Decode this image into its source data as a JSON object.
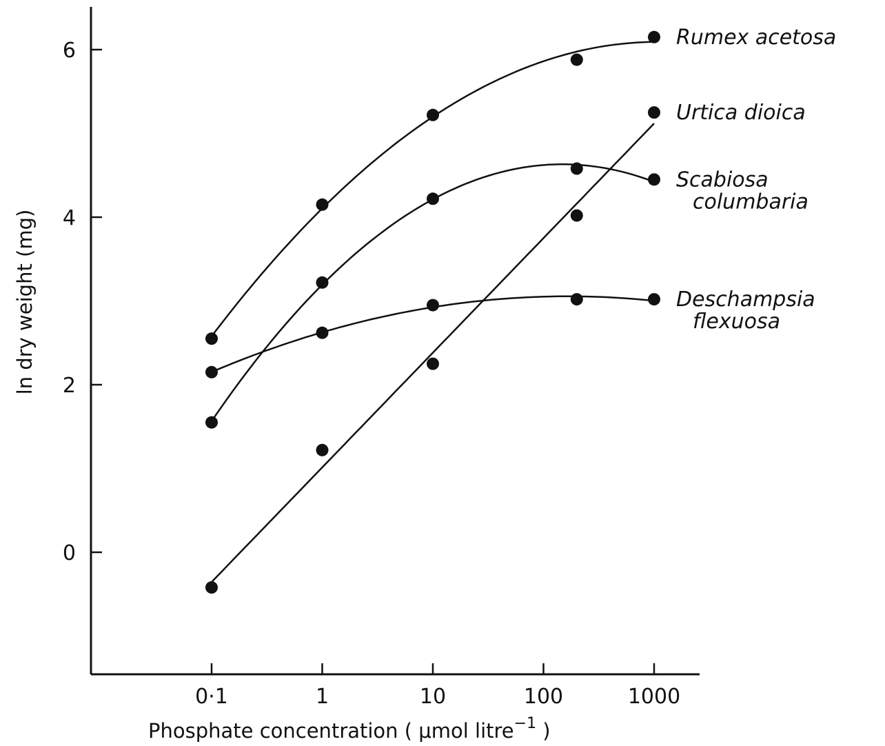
{
  "chart_data": {
    "type": "scatter",
    "title": "",
    "xlabel": "Phosphate concentration ( μmol litre",
    "xlabel_superscript": "−1",
    "xlabel_close": " )",
    "ylabel": "ln dry weight (mg)",
    "x_scale": "log",
    "xlim": [
      0.025,
      5000
    ],
    "ylim": [
      -1.5,
      6.5
    ],
    "x_ticks": [
      {
        "value": 0.1,
        "label": "0·1"
      },
      {
        "value": 1,
        "label": "1"
      },
      {
        "value": 10,
        "label": "10"
      },
      {
        "value": 100,
        "label": "100"
      },
      {
        "value": 1000,
        "label": "1000"
      }
    ],
    "y_ticks": [
      {
        "value": 0,
        "label": "0"
      },
      {
        "value": 2,
        "label": "2"
      },
      {
        "value": 4,
        "label": "4"
      },
      {
        "value": 6,
        "label": "6"
      }
    ],
    "grid": false,
    "legend": "none",
    "series_label_position": "right end of each curve",
    "marker_color": "#111111",
    "line_color": "#111111",
    "series": [
      {
        "name": "Rumex acetosa",
        "label_lines": [
          "Rumex acetosa"
        ],
        "x": [
          0.1,
          1,
          10,
          200,
          1000
        ],
        "y": [
          2.55,
          4.15,
          5.22,
          5.88,
          6.15
        ]
      },
      {
        "name": "Urtica dioica",
        "label_lines": [
          "Urtica dioica"
        ],
        "x": [
          0.1,
          1,
          10,
          200,
          1000
        ],
        "y": [
          -0.42,
          1.22,
          2.25,
          4.02,
          5.25
        ]
      },
      {
        "name": "Scabiosa columbaria",
        "label_lines": [
          "Scabiosa",
          "columbaria"
        ],
        "x": [
          0.1,
          1,
          10,
          200,
          1000
        ],
        "y": [
          1.55,
          3.22,
          4.22,
          4.58,
          4.45
        ]
      },
      {
        "name": "Deschampsia flexuosa",
        "label_lines": [
          "Deschampsia",
          "flexuosa"
        ],
        "x": [
          0.1,
          1,
          10,
          200,
          1000
        ],
        "y": [
          2.15,
          2.62,
          2.95,
          3.02,
          3.02
        ]
      }
    ]
  }
}
